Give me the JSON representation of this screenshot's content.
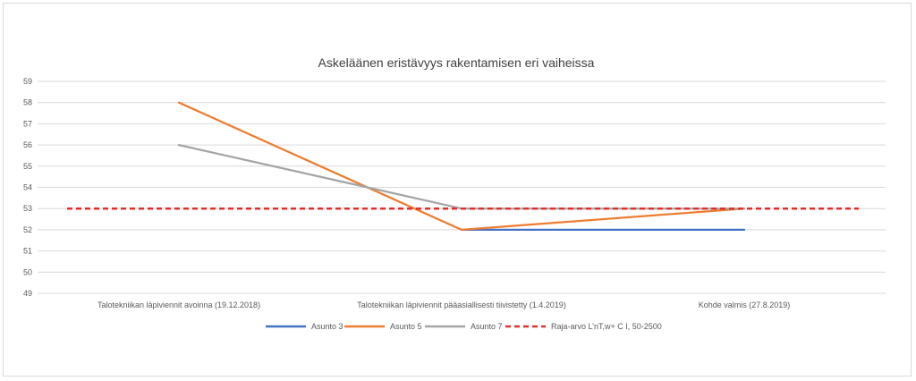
{
  "chart_data": {
    "type": "line",
    "title": "Askeläänen eristävyys rakentamisen eri vaiheissa",
    "xlabel": "",
    "ylabel": "",
    "categories": [
      "Talotekniikan läpiviennit avoinna (19.12.2018)",
      "Talotekniikan läpiviennit pääasiallisesti tiivistetty (1.4.2019)",
      "Kohde valmis (27.8.2019)"
    ],
    "yticks": [
      "49",
      "50",
      "51",
      "52",
      "53",
      "54",
      "55",
      "56",
      "57",
      "58",
      "59"
    ],
    "ylim": [
      49,
      59
    ],
    "grid": true,
    "legend": "bottom",
    "series": [
      {
        "name": "Asunto 3",
        "values": [
          null,
          52,
          52
        ],
        "color": "#4472c4",
        "dash": false
      },
      {
        "name": "Asunto 5",
        "values": [
          58,
          52,
          53
        ],
        "color": "#ed7d31",
        "dash": false
      },
      {
        "name": "Asunto 7",
        "values": [
          56,
          53,
          53
        ],
        "color": "#a5a5a5",
        "dash": false
      },
      {
        "name": "Raja-arvo  L’nT,w+ C I, 50-2500",
        "values": [
          53,
          53,
          53
        ],
        "color": "#e0302b",
        "dash": true,
        "span": "full"
      }
    ]
  }
}
